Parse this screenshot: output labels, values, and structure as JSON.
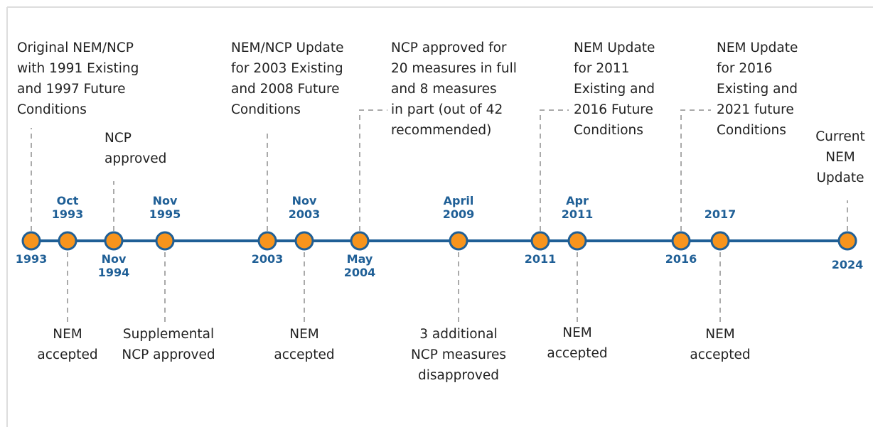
{
  "events": [
    {
      "date": [
        "1993"
      ],
      "text": [
        "Original NEM/NCP",
        "with 1991 Existing",
        "and 1997 Future",
        "Conditions"
      ]
    },
    {
      "date": [
        "Oct",
        "1993"
      ],
      "text": [
        "NEM",
        "accepted"
      ]
    },
    {
      "date": [
        "Nov",
        "1994"
      ],
      "text": [
        "NCP",
        "approved"
      ]
    },
    {
      "date": [
        "Nov",
        "1995"
      ],
      "text": [
        "Supplemental",
        "NCP approved"
      ]
    },
    {
      "date": [
        "2003"
      ],
      "text": [
        "NEM/NCP Update",
        "for 2003 Existing",
        "and 2008 Future",
        "Conditions"
      ]
    },
    {
      "date": [
        "Nov",
        "2003"
      ],
      "text": [
        "NEM",
        "accepted"
      ]
    },
    {
      "date": [
        "May",
        "2004"
      ],
      "text": [
        "NCP approved for",
        "20 measures in full",
        "and 8 measures",
        "in part (out of 42",
        "recommended)"
      ]
    },
    {
      "date": [
        "April",
        "2009"
      ],
      "text": [
        "3 additional",
        "NCP measures",
        "disapproved"
      ]
    },
    {
      "date": [
        "2011"
      ],
      "text": [
        "NEM Update",
        "for 2011",
        "Existing and",
        "2016 Future",
        "Conditions"
      ]
    },
    {
      "date": [
        "Apr",
        "2011"
      ],
      "text": [
        "NEM",
        "accepted"
      ]
    },
    {
      "date": [
        "2016"
      ],
      "text": [
        "NEM Update",
        "for 2016",
        "Existing and",
        "2021 future",
        "Conditions"
      ]
    },
    {
      "date": [
        "2017"
      ],
      "text": [
        "NEM",
        "accepted"
      ]
    },
    {
      "date": [
        "2024"
      ],
      "text": [
        "Current",
        "NEM",
        "Update"
      ]
    }
  ]
}
